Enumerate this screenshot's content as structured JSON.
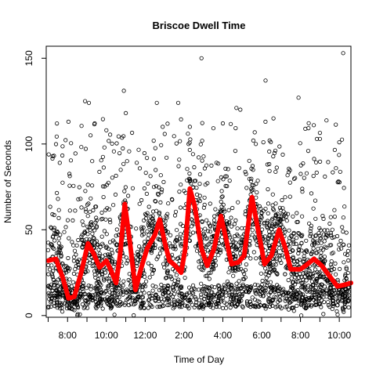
{
  "chart_data": {
    "type": "scatter",
    "title": "Briscoe Dwell Time",
    "xlabel": "Time of Day",
    "ylabel": "Number of Seconds",
    "x_unit": "hour of day",
    "xlim": [
      6.9,
      22.6
    ],
    "ylim": [
      -1,
      157
    ],
    "x_ticks": [
      {
        "value": 8,
        "label": "8:00"
      },
      {
        "value": 10,
        "label": "10:00"
      },
      {
        "value": 12,
        "label": "12:00"
      },
      {
        "value": 14,
        "label": "2:00"
      },
      {
        "value": 16,
        "label": "4:00"
      },
      {
        "value": 18,
        "label": "6:00"
      },
      {
        "value": 20,
        "label": "8:00"
      },
      {
        "value": 22,
        "label": "10:00"
      }
    ],
    "x_minor_ticks": [
      7,
      9,
      11,
      13,
      15,
      17,
      19,
      21
    ],
    "y_ticks": [
      {
        "value": 0,
        "label": "0"
      },
      {
        "value": 50,
        "label": "50"
      },
      {
        "value": 100,
        "label": "100"
      },
      {
        "value": 150,
        "label": "150"
      }
    ],
    "grid": false,
    "legend": "none",
    "series": [
      {
        "kind": "points",
        "marker": "open-circle",
        "color": "#000000",
        "note": "dense scatter of individual dwell times, concentrated 0–75 s across the day",
        "outliers": [
          [
            7.6,
            89
          ],
          [
            8.9,
            125
          ],
          [
            9.1,
            124
          ],
          [
            9.4,
            112
          ],
          [
            10.0,
            108
          ],
          [
            10.9,
            131
          ],
          [
            11.0,
            118
          ],
          [
            12.6,
            124
          ],
          [
            13.7,
            124
          ],
          [
            14.3,
            110
          ],
          [
            14.2,
            106
          ],
          [
            14.9,
            150
          ],
          [
            16.0,
            112
          ],
          [
            16.7,
            121
          ],
          [
            16.9,
            120
          ],
          [
            18.2,
            137
          ],
          [
            19.9,
            127
          ],
          [
            21.0,
            103
          ],
          [
            22.2,
            153
          ],
          [
            22.0,
            101
          ],
          [
            17.7,
            100
          ],
          [
            12.9,
            110
          ],
          [
            13.1,
            92
          ],
          [
            9.9,
            98
          ],
          [
            20.4,
            96
          ]
        ]
      },
      {
        "kind": "smooth",
        "color": "#ff0000",
        "points": [
          [
            7.0,
            32
          ],
          [
            7.4,
            33
          ],
          [
            7.75,
            22
          ],
          [
            8.05,
            10
          ],
          [
            8.35,
            11
          ],
          [
            8.7,
            25
          ],
          [
            9.05,
            42
          ],
          [
            9.35,
            36
          ],
          [
            9.65,
            28
          ],
          [
            10.0,
            32
          ],
          [
            10.25,
            26
          ],
          [
            10.5,
            19
          ],
          [
            10.7,
            35
          ],
          [
            10.95,
            65
          ],
          [
            11.2,
            44
          ],
          [
            11.5,
            15
          ],
          [
            11.8,
            28
          ],
          [
            12.1,
            39
          ],
          [
            12.5,
            47
          ],
          [
            12.75,
            56
          ],
          [
            13.0,
            43
          ],
          [
            13.25,
            32
          ],
          [
            13.55,
            29
          ],
          [
            13.85,
            25
          ],
          [
            14.05,
            38
          ],
          [
            14.3,
            74
          ],
          [
            14.55,
            64
          ],
          [
            14.9,
            39
          ],
          [
            15.2,
            29
          ],
          [
            15.55,
            39
          ],
          [
            15.9,
            58
          ],
          [
            16.2,
            43
          ],
          [
            16.45,
            30
          ],
          [
            16.8,
            31
          ],
          [
            17.1,
            35
          ],
          [
            17.5,
            69
          ],
          [
            17.85,
            48
          ],
          [
            18.15,
            30
          ],
          [
            18.5,
            35
          ],
          [
            18.9,
            50
          ],
          [
            19.2,
            40
          ],
          [
            19.5,
            27
          ],
          [
            20.0,
            27
          ],
          [
            20.25,
            29
          ],
          [
            20.7,
            33
          ],
          [
            21.1,
            29
          ],
          [
            21.5,
            23
          ],
          [
            21.9,
            17
          ],
          [
            22.3,
            18
          ],
          [
            22.6,
            19
          ]
        ]
      }
    ]
  }
}
